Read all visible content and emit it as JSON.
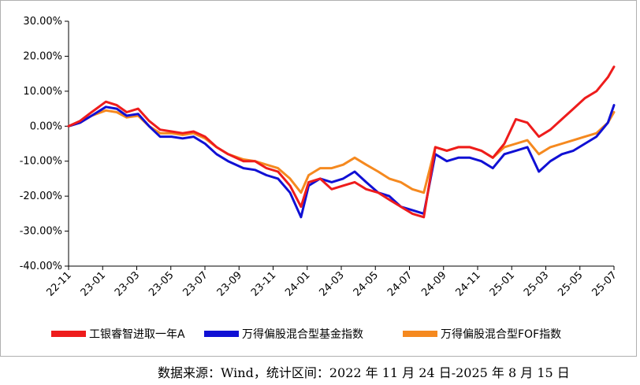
{
  "source_note": "数据来源：Wind，统计区间：2022 年 11 月 24 日-2025 年 8 月 15 日",
  "chart_data": {
    "type": "line",
    "title": "",
    "xlabel": "",
    "ylabel": "",
    "ylim": [
      -40,
      30
    ],
    "y_ticks": [
      30,
      20,
      10,
      0,
      -10,
      -20,
      -30,
      -40
    ],
    "y_tick_labels": [
      "30.00%",
      "20.00%",
      "10.00%",
      "0.00%",
      "-10.00%",
      "-20.00%",
      "-30.00%",
      "-40.00%"
    ],
    "x_ticks": [
      "22-11",
      "23-01",
      "23-03",
      "23-05",
      "23-07",
      "23-09",
      "23-11",
      "24-01",
      "24-03",
      "24-05",
      "24-07",
      "24-09",
      "24-11",
      "25-01",
      "25-03",
      "25-05",
      "25-07"
    ],
    "x": [
      "2022-11-24",
      "2022-12-15",
      "2023-01-05",
      "2023-01-31",
      "2023-02-20",
      "2023-03-10",
      "2023-03-31",
      "2023-04-20",
      "2023-05-10",
      "2023-05-31",
      "2023-06-20",
      "2023-07-10",
      "2023-07-31",
      "2023-08-21",
      "2023-09-11",
      "2023-10-09",
      "2023-10-30",
      "2023-11-20",
      "2023-12-11",
      "2024-01-02",
      "2024-01-22",
      "2024-02-05",
      "2024-02-26",
      "2024-03-18",
      "2024-04-08",
      "2024-04-29",
      "2024-05-20",
      "2024-06-11",
      "2024-07-01",
      "2024-07-22",
      "2024-08-12",
      "2024-09-02",
      "2024-09-23",
      "2024-10-14",
      "2024-11-04",
      "2024-11-25",
      "2024-12-16",
      "2025-01-06",
      "2025-01-27",
      "2025-02-17",
      "2025-03-10",
      "2025-03-31",
      "2025-04-21",
      "2025-05-12",
      "2025-06-02",
      "2025-06-23",
      "2025-07-14",
      "2025-08-04",
      "2025-08-15"
    ],
    "series": [
      {
        "name": "工银睿智进取一年A",
        "color": "#ee1c1c",
        "values": [
          0.0,
          1.5,
          4.0,
          7.0,
          6.0,
          4.0,
          5.0,
          1.5,
          -1.0,
          -1.5,
          -2.0,
          -1.5,
          -3.0,
          -6.0,
          -8.0,
          -10.0,
          -10.0,
          -12.0,
          -13.0,
          -17.0,
          -23.0,
          -16.0,
          -15.0,
          -18.0,
          -17.0,
          -16.0,
          -18.0,
          -19.0,
          -21.0,
          -23.0,
          -25.0,
          -26.0,
          -6.0,
          -7.0,
          -6.0,
          -6.0,
          -7.0,
          -9.0,
          -5.0,
          2.0,
          1.0,
          -3.0,
          -1.0,
          2.0,
          5.0,
          8.0,
          10.0,
          14.0,
          17.0
        ]
      },
      {
        "name": "万得偏股混合型基金指数",
        "color": "#1010d4",
        "values": [
          0.0,
          1.0,
          3.0,
          5.5,
          5.0,
          3.0,
          3.5,
          0.0,
          -3.0,
          -3.0,
          -3.5,
          -3.0,
          -5.0,
          -8.0,
          -10.0,
          -12.0,
          -12.5,
          -14.0,
          -15.0,
          -19.0,
          -26.0,
          -17.0,
          -15.0,
          -16.0,
          -15.0,
          -13.0,
          -16.0,
          -19.0,
          -20.0,
          -23.0,
          -24.0,
          -25.0,
          -8.0,
          -10.0,
          -9.0,
          -9.0,
          -10.0,
          -12.0,
          -8.0,
          -7.0,
          -6.0,
          -13.0,
          -10.0,
          -8.0,
          -7.0,
          -5.0,
          -3.0,
          1.0,
          6.0
        ]
      },
      {
        "name": "万得偏股混合型FOF指数",
        "color": "#f5891f",
        "values": [
          0.0,
          1.0,
          3.0,
          4.5,
          4.0,
          2.5,
          3.0,
          0.0,
          -2.0,
          -2.0,
          -2.5,
          -2.0,
          -3.5,
          -6.0,
          -8.0,
          -9.5,
          -10.0,
          -11.0,
          -12.0,
          -15.0,
          -19.0,
          -14.0,
          -12.0,
          -12.0,
          -11.0,
          -9.0,
          -11.0,
          -13.0,
          -15.0,
          -16.0,
          -18.0,
          -19.0,
          -6.0,
          -7.0,
          -6.0,
          -6.0,
          -7.0,
          -9.0,
          -6.0,
          -5.0,
          -4.0,
          -8.0,
          -6.0,
          -5.0,
          -4.0,
          -3.0,
          -2.0,
          1.0,
          4.0
        ]
      }
    ],
    "legend_position": "bottom"
  }
}
